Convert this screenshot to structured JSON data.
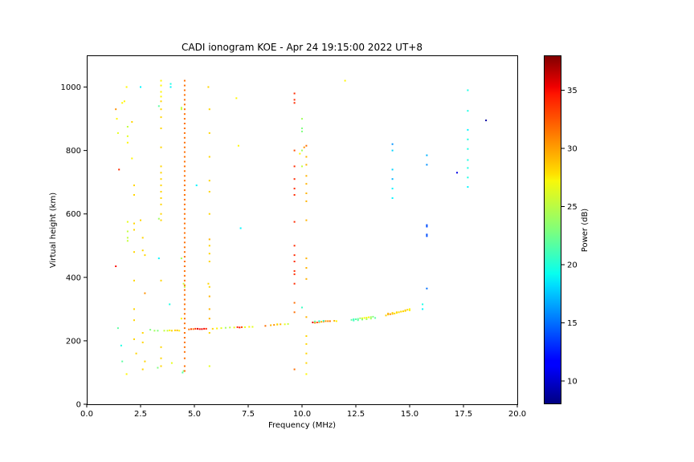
{
  "chart_data": {
    "type": "scatter",
    "title": "CADI ionogram KOE - Apr 24 19:15:00 2022 UT+8",
    "xlabel": "Frequency (MHz)",
    "ylabel": "Virtual height (km)",
    "xlim": [
      0,
      20
    ],
    "ylim": [
      0,
      1100
    ],
    "xticks": [
      "0.0",
      "2.5",
      "5.0",
      "7.5",
      "10.0",
      "12.5",
      "15.0",
      "17.5",
      "20.0"
    ],
    "xtick_values": [
      0,
      2.5,
      5,
      7.5,
      10,
      12.5,
      15,
      17.5,
      20
    ],
    "yticks": [
      "0",
      "200",
      "400",
      "600",
      "800",
      "1000"
    ],
    "ytick_values": [
      0,
      200,
      400,
      600,
      800,
      1000
    ],
    "grid": false,
    "colorbar": {
      "label": "Power (dB)",
      "range": [
        8,
        38
      ],
      "ticks": [
        "10",
        "15",
        "20",
        "25",
        "30",
        "35"
      ],
      "tick_values": [
        10,
        15,
        20,
        25,
        30,
        35
      ],
      "colormap": "jet"
    },
    "points": [
      [
        1.35,
        930,
        30
      ],
      [
        1.4,
        900,
        27
      ],
      [
        1.45,
        855,
        26
      ],
      [
        1.5,
        740,
        33
      ],
      [
        1.35,
        435,
        34
      ],
      [
        1.45,
        240,
        22
      ],
      [
        1.6,
        185,
        20
      ],
      [
        1.65,
        135,
        22
      ],
      [
        1.65,
        950,
        27
      ],
      [
        1.75,
        955,
        27
      ],
      [
        1.85,
        1000,
        27
      ],
      [
        1.9,
        875,
        25
      ],
      [
        1.9,
        845,
        26
      ],
      [
        1.9,
        825,
        27
      ],
      [
        1.9,
        575,
        26
      ],
      [
        1.9,
        545,
        25
      ],
      [
        1.9,
        525,
        25
      ],
      [
        1.9,
        515,
        25
      ],
      [
        1.85,
        95,
        27
      ],
      [
        2.1,
        890,
        28
      ],
      [
        2.1,
        775,
        27
      ],
      [
        2.2,
        690,
        28
      ],
      [
        2.2,
        660,
        28
      ],
      [
        2.2,
        570,
        28
      ],
      [
        2.2,
        550,
        28
      ],
      [
        2.2,
        480,
        28
      ],
      [
        2.2,
        390,
        28
      ],
      [
        2.2,
        300,
        28
      ],
      [
        2.2,
        265,
        28
      ],
      [
        2.2,
        205,
        28
      ],
      [
        2.3,
        160,
        28
      ],
      [
        2.5,
        1000,
        19
      ],
      [
        2.5,
        580,
        28
      ],
      [
        2.6,
        525,
        28
      ],
      [
        2.6,
        485,
        28
      ],
      [
        2.7,
        470,
        28
      ],
      [
        2.7,
        350,
        30
      ],
      [
        2.6,
        225,
        28
      ],
      [
        2.6,
        195,
        28
      ],
      [
        2.7,
        135,
        28
      ],
      [
        2.6,
        110,
        28
      ],
      [
        2.95,
        235,
        23
      ],
      [
        3.15,
        232,
        24
      ],
      [
        3.3,
        232,
        23
      ],
      [
        3.35,
        940,
        22
      ],
      [
        3.35,
        585,
        24
      ],
      [
        3.35,
        460,
        19
      ],
      [
        3.3,
        115,
        23
      ],
      [
        3.45,
        1020,
        27
      ],
      [
        3.45,
        1005,
        27
      ],
      [
        3.45,
        985,
        27
      ],
      [
        3.45,
        970,
        27
      ],
      [
        3.45,
        955,
        28
      ],
      [
        3.45,
        930,
        28
      ],
      [
        3.45,
        905,
        28
      ],
      [
        3.45,
        870,
        28
      ],
      [
        3.45,
        810,
        28
      ],
      [
        3.45,
        750,
        28
      ],
      [
        3.45,
        730,
        28
      ],
      [
        3.45,
        710,
        28
      ],
      [
        3.45,
        690,
        28
      ],
      [
        3.45,
        670,
        28
      ],
      [
        3.45,
        650,
        28
      ],
      [
        3.45,
        630,
        28
      ],
      [
        3.45,
        600,
        28
      ],
      [
        3.45,
        580,
        28
      ],
      [
        3.45,
        390,
        28
      ],
      [
        3.45,
        180,
        28
      ],
      [
        3.45,
        145,
        28
      ],
      [
        3.45,
        120,
        28
      ],
      [
        3.6,
        232,
        25
      ],
      [
        3.75,
        232,
        25
      ],
      [
        3.85,
        233,
        27
      ],
      [
        3.95,
        232,
        28
      ],
      [
        3.9,
        1010,
        20
      ],
      [
        3.9,
        1000,
        19
      ],
      [
        3.85,
        315,
        20
      ],
      [
        3.95,
        130,
        26
      ],
      [
        4.1,
        233,
        28
      ],
      [
        4.2,
        233,
        29
      ],
      [
        4.3,
        232,
        27
      ],
      [
        4.4,
        935,
        25
      ],
      [
        4.4,
        930,
        25
      ],
      [
        4.4,
        460,
        24
      ],
      [
        4.5,
        380,
        25
      ],
      [
        4.55,
        370,
        25
      ],
      [
        4.4,
        270,
        27
      ],
      [
        4.5,
        105,
        23
      ],
      [
        4.45,
        100,
        22
      ],
      [
        4.55,
        1020,
        31
      ],
      [
        4.55,
        1005,
        31
      ],
      [
        4.55,
        990,
        31
      ],
      [
        4.55,
        975,
        31
      ],
      [
        4.55,
        960,
        31
      ],
      [
        4.55,
        945,
        31
      ],
      [
        4.55,
        930,
        31
      ],
      [
        4.55,
        915,
        31
      ],
      [
        4.55,
        900,
        31
      ],
      [
        4.55,
        885,
        31
      ],
      [
        4.55,
        870,
        31
      ],
      [
        4.55,
        855,
        31
      ],
      [
        4.55,
        840,
        31
      ],
      [
        4.55,
        825,
        31
      ],
      [
        4.55,
        810,
        31
      ],
      [
        4.55,
        795,
        31
      ],
      [
        4.55,
        780,
        31
      ],
      [
        4.55,
        765,
        31
      ],
      [
        4.55,
        750,
        31
      ],
      [
        4.55,
        735,
        31
      ],
      [
        4.55,
        720,
        31
      ],
      [
        4.55,
        705,
        31
      ],
      [
        4.55,
        690,
        31
      ],
      [
        4.55,
        675,
        31
      ],
      [
        4.55,
        660,
        31
      ],
      [
        4.55,
        645,
        31
      ],
      [
        4.55,
        630,
        31
      ],
      [
        4.55,
        615,
        31
      ],
      [
        4.55,
        600,
        31
      ],
      [
        4.55,
        585,
        31
      ],
      [
        4.55,
        570,
        31
      ],
      [
        4.55,
        555,
        31
      ],
      [
        4.55,
        540,
        31
      ],
      [
        4.55,
        525,
        31
      ],
      [
        4.55,
        510,
        31
      ],
      [
        4.55,
        495,
        31
      ],
      [
        4.55,
        480,
        31
      ],
      [
        4.55,
        465,
        31
      ],
      [
        4.55,
        450,
        31
      ],
      [
        4.55,
        435,
        31
      ],
      [
        4.55,
        420,
        31
      ],
      [
        4.55,
        405,
        31
      ],
      [
        4.55,
        390,
        31
      ],
      [
        4.55,
        375,
        31
      ],
      [
        4.55,
        360,
        31
      ],
      [
        4.55,
        345,
        31
      ],
      [
        4.55,
        330,
        31
      ],
      [
        4.55,
        315,
        31
      ],
      [
        4.55,
        300,
        31
      ],
      [
        4.55,
        285,
        31
      ],
      [
        4.55,
        270,
        31
      ],
      [
        4.55,
        255,
        31
      ],
      [
        4.55,
        240,
        31
      ],
      [
        4.55,
        225,
        31
      ],
      [
        4.55,
        210,
        31
      ],
      [
        4.55,
        195,
        31
      ],
      [
        4.55,
        180,
        31
      ],
      [
        4.55,
        165,
        31
      ],
      [
        4.55,
        145,
        31
      ],
      [
        4.55,
        120,
        31
      ],
      [
        4.55,
        105,
        31
      ],
      [
        4.75,
        236,
        31
      ],
      [
        4.85,
        237,
        32
      ],
      [
        4.95,
        237,
        31
      ],
      [
        5.05,
        238,
        33
      ],
      [
        5.15,
        238,
        35
      ],
      [
        5.25,
        237,
        34
      ],
      [
        5.35,
        237,
        35
      ],
      [
        5.45,
        238,
        34
      ],
      [
        5.55,
        238,
        33
      ],
      [
        5.1,
        690,
        19
      ],
      [
        5.65,
        1000,
        28
      ],
      [
        5.7,
        930,
        28
      ],
      [
        5.7,
        855,
        28
      ],
      [
        5.7,
        780,
        28
      ],
      [
        5.7,
        705,
        28
      ],
      [
        5.7,
        670,
        28
      ],
      [
        5.7,
        600,
        28
      ],
      [
        5.7,
        520,
        29
      ],
      [
        5.7,
        500,
        28
      ],
      [
        5.7,
        475,
        28
      ],
      [
        5.7,
        450,
        28
      ],
      [
        5.65,
        380,
        28
      ],
      [
        5.7,
        370,
        28
      ],
      [
        5.7,
        340,
        29
      ],
      [
        5.7,
        300,
        29
      ],
      [
        5.7,
        270,
        29
      ],
      [
        5.7,
        225,
        28
      ],
      [
        5.7,
        120,
        26
      ],
      [
        5.85,
        238,
        28
      ],
      [
        6.05,
        239,
        27
      ],
      [
        6.25,
        240,
        26
      ],
      [
        6.45,
        241,
        24
      ],
      [
        6.65,
        242,
        25
      ],
      [
        6.85,
        242,
        26
      ],
      [
        7.0,
        243,
        33
      ],
      [
        7.1,
        242,
        34
      ],
      [
        7.2,
        243,
        32
      ],
      [
        6.95,
        965,
        27
      ],
      [
        7.05,
        815,
        27
      ],
      [
        7.15,
        555,
        19
      ],
      [
        7.35,
        243,
        26
      ],
      [
        7.55,
        244,
        27
      ],
      [
        7.7,
        244,
        26
      ],
      [
        8.3,
        247,
        31
      ],
      [
        8.55,
        249,
        29
      ],
      [
        8.7,
        250,
        30
      ],
      [
        8.85,
        251,
        28
      ],
      [
        9.0,
        252,
        29
      ],
      [
        9.2,
        252,
        26
      ],
      [
        9.35,
        253,
        25
      ],
      [
        8.85,
        252,
        28
      ],
      [
        9.65,
        980,
        33
      ],
      [
        9.65,
        960,
        33
      ],
      [
        9.65,
        950,
        33
      ],
      [
        9.65,
        800,
        32
      ],
      [
        9.65,
        750,
        33
      ],
      [
        9.65,
        710,
        33
      ],
      [
        9.65,
        680,
        33
      ],
      [
        9.65,
        660,
        33
      ],
      [
        9.65,
        575,
        33
      ],
      [
        9.65,
        500,
        33
      ],
      [
        9.65,
        470,
        33
      ],
      [
        9.65,
        450,
        33
      ],
      [
        9.65,
        420,
        33
      ],
      [
        9.65,
        410,
        33
      ],
      [
        9.65,
        380,
        33
      ],
      [
        9.65,
        320,
        31
      ],
      [
        9.65,
        290,
        31
      ],
      [
        9.65,
        110,
        31
      ],
      [
        9.9,
        790,
        27
      ],
      [
        10.0,
        900,
        24
      ],
      [
        10.0,
        870,
        23
      ],
      [
        10.0,
        860,
        23
      ],
      [
        10.0,
        800,
        24
      ],
      [
        10.0,
        750,
        25
      ],
      [
        10.0,
        305,
        21
      ],
      [
        10.1,
        810,
        30
      ],
      [
        10.2,
        815,
        31
      ],
      [
        10.2,
        780,
        29
      ],
      [
        10.2,
        755,
        29
      ],
      [
        10.2,
        720,
        29
      ],
      [
        10.2,
        695,
        29
      ],
      [
        10.2,
        665,
        29
      ],
      [
        10.2,
        640,
        29
      ],
      [
        10.2,
        580,
        29
      ],
      [
        10.2,
        460,
        29
      ],
      [
        10.2,
        430,
        29
      ],
      [
        10.2,
        395,
        29
      ],
      [
        10.2,
        275,
        29
      ],
      [
        10.2,
        215,
        28
      ],
      [
        10.2,
        190,
        28
      ],
      [
        10.2,
        160,
        28
      ],
      [
        10.2,
        130,
        28
      ],
      [
        10.2,
        95,
        27
      ],
      [
        10.5,
        258,
        35
      ],
      [
        10.6,
        257,
        30
      ],
      [
        10.7,
        258,
        32
      ],
      [
        10.8,
        259,
        30
      ],
      [
        10.9,
        260,
        29
      ],
      [
        11.0,
        261,
        31
      ],
      [
        11.1,
        262,
        30
      ],
      [
        11.2,
        262,
        30
      ],
      [
        11.3,
        262,
        31
      ],
      [
        11.5,
        263,
        29
      ],
      [
        11.6,
        262,
        27
      ],
      [
        10.6,
        261,
        22
      ],
      [
        10.8,
        262,
        20
      ],
      [
        11.0,
        263,
        21
      ],
      [
        12.0,
        1020,
        27
      ],
      [
        12.3,
        266,
        22
      ],
      [
        12.4,
        268,
        21
      ],
      [
        12.5,
        268,
        22
      ],
      [
        12.6,
        269,
        22
      ],
      [
        12.7,
        271,
        24
      ],
      [
        12.8,
        271,
        26
      ],
      [
        12.9,
        272,
        27
      ],
      [
        13.0,
        273,
        26
      ],
      [
        13.1,
        274,
        27
      ],
      [
        13.2,
        275,
        24
      ],
      [
        13.3,
        276,
        23
      ],
      [
        12.4,
        264,
        21
      ],
      [
        12.6,
        265,
        22
      ],
      [
        12.8,
        267,
        23
      ],
      [
        13.0,
        268,
        24
      ],
      [
        13.2,
        270,
        24
      ],
      [
        13.4,
        272,
        22
      ],
      [
        13.9,
        280,
        28
      ],
      [
        14.0,
        283,
        29
      ],
      [
        14.1,
        284,
        30
      ],
      [
        14.2,
        285,
        29
      ],
      [
        14.3,
        286,
        28
      ],
      [
        14.4,
        288,
        27
      ],
      [
        14.5,
        290,
        28
      ],
      [
        14.6,
        292,
        27
      ],
      [
        14.7,
        293,
        28
      ],
      [
        14.8,
        296,
        29
      ],
      [
        14.9,
        298,
        28
      ],
      [
        15.0,
        300,
        27
      ],
      [
        14.0,
        286,
        29
      ],
      [
        14.2,
        288,
        28
      ],
      [
        14.4,
        290,
        28
      ],
      [
        14.6,
        292,
        28
      ],
      [
        14.8,
        294,
        28
      ],
      [
        15.0,
        296,
        27
      ],
      [
        14.2,
        820,
        16
      ],
      [
        14.2,
        800,
        18
      ],
      [
        14.2,
        740,
        18
      ],
      [
        14.2,
        710,
        17
      ],
      [
        14.2,
        680,
        19
      ],
      [
        14.2,
        650,
        19
      ],
      [
        15.6,
        315,
        20
      ],
      [
        15.6,
        300,
        19
      ],
      [
        15.8,
        785,
        17
      ],
      [
        15.8,
        755,
        16
      ],
      [
        15.8,
        565,
        14
      ],
      [
        15.8,
        560,
        14
      ],
      [
        15.8,
        535,
        14
      ],
      [
        15.8,
        530,
        14
      ],
      [
        15.8,
        365,
        15
      ],
      [
        17.2,
        730,
        11
      ],
      [
        17.7,
        990,
        20
      ],
      [
        17.7,
        925,
        20
      ],
      [
        17.7,
        865,
        19
      ],
      [
        17.7,
        835,
        20
      ],
      [
        17.7,
        805,
        20
      ],
      [
        17.7,
        770,
        20
      ],
      [
        17.7,
        745,
        20
      ],
      [
        17.7,
        715,
        20
      ],
      [
        17.7,
        685,
        19
      ],
      [
        18.55,
        895,
        9
      ]
    ]
  }
}
